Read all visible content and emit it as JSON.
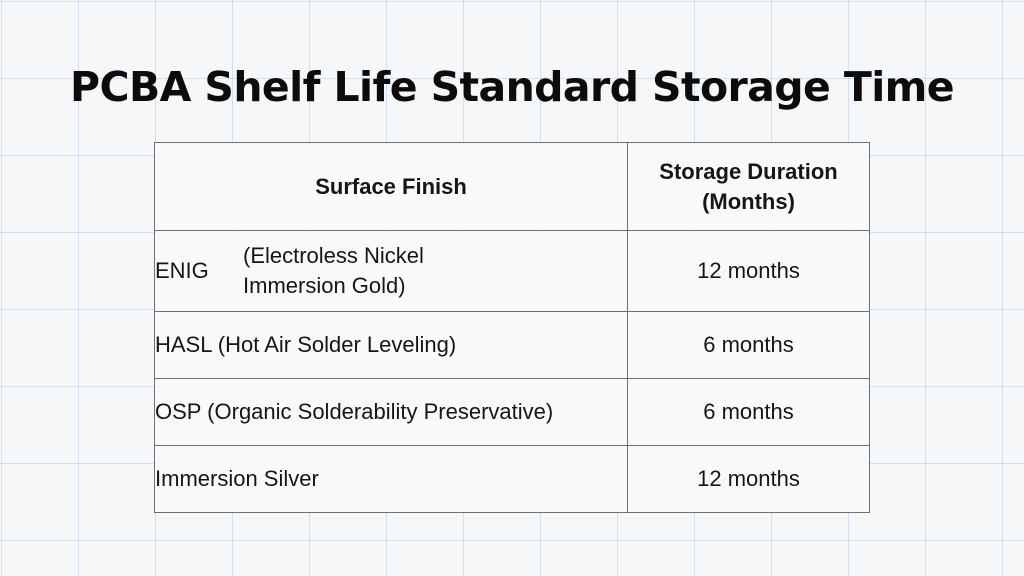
{
  "title": "PCBA Shelf Life Standard Storage Time",
  "table": {
    "headers": {
      "finish": "Surface Finish",
      "duration_line1": "Storage Duration",
      "duration_line2": "(Months)"
    },
    "rows": [
      {
        "finish_abbr": "ENIG",
        "finish_full": "(Electroless Nickel Immersion Gold)",
        "duration": "12 months"
      },
      {
        "finish": "HASL (Hot Air Solder Leveling)",
        "duration": "6 months"
      },
      {
        "finish": "OSP (Organic Solderability Preservative)",
        "duration": "6 months"
      },
      {
        "finish": "Immersion Silver",
        "duration": "12 months"
      }
    ]
  }
}
